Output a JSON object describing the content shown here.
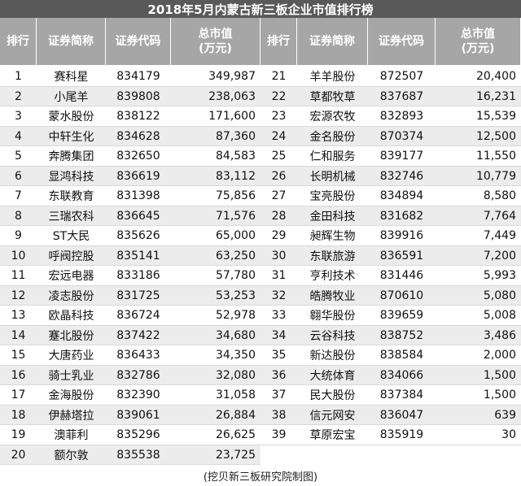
{
  "title": "2018年5月内蒙古新三板企业市值排行榜",
  "headers": [
    "排行",
    "证券简称",
    "证券代码",
    "总市值"
  ],
  "header_unit": "(万元)",
  "table": {
    "left_rows": [
      [
        "1",
        "赛科星",
        "834179",
        "349,987"
      ],
      [
        "2",
        "小尾羊",
        "839808",
        "238,063"
      ],
      [
        "3",
        "蒙水股份",
        "838122",
        "171,600"
      ],
      [
        "4",
        "中轩生化",
        "834628",
        "87,360"
      ],
      [
        "5",
        "奔腾集团",
        "832650",
        "84,583"
      ],
      [
        "6",
        "显鸿科技",
        "836619",
        "83,112"
      ],
      [
        "7",
        "东联教育",
        "831398",
        "75,856"
      ],
      [
        "8",
        "三瑞农科",
        "836645",
        "71,576"
      ],
      [
        "9",
        "ST大民",
        "835626",
        "65,000"
      ],
      [
        "10",
        "呼阀控股",
        "835141",
        "63,250"
      ],
      [
        "11",
        "宏远电器",
        "833186",
        "57,780"
      ],
      [
        "12",
        "凌志股份",
        "831725",
        "53,253"
      ],
      [
        "13",
        "欧晶科技",
        "836724",
        "52,978"
      ],
      [
        "14",
        "蹇北股份",
        "837422",
        "34,680"
      ],
      [
        "15",
        "大唐药业",
        "836433",
        "34,350"
      ],
      [
        "16",
        "骑士乳业",
        "832786",
        "32,080"
      ],
      [
        "17",
        "金海股份",
        "832390",
        "31,058"
      ],
      [
        "18",
        "伊赫塔拉",
        "839061",
        "26,884"
      ],
      [
        "19",
        "澳菲利",
        "835296",
        "26,625"
      ],
      [
        "20",
        "额尔敦",
        "835538",
        "23,725"
      ]
    ],
    "right_rows": [
      [
        "21",
        "羊羊股份",
        "872507",
        "20,400"
      ],
      [
        "22",
        "草都牧草",
        "837687",
        "16,231"
      ],
      [
        "23",
        "宏源农牧",
        "832893",
        "15,539"
      ],
      [
        "24",
        "金名股份",
        "870374",
        "12,500"
      ],
      [
        "25",
        "仁和服务",
        "839177",
        "11,550"
      ],
      [
        "26",
        "长明机械",
        "832746",
        "10,779"
      ],
      [
        "27",
        "宝亮股份",
        "834894",
        "8,580"
      ],
      [
        "28",
        "金田科技",
        "831682",
        "7,764"
      ],
      [
        "29",
        "昶辉生物",
        "839916",
        "7,449"
      ],
      [
        "30",
        "东联旅游",
        "836591",
        "7,200"
      ],
      [
        "31",
        "亨利技术",
        "831446",
        "5,993"
      ],
      [
        "32",
        "皓腾牧业",
        "870610",
        "5,080"
      ],
      [
        "33",
        "翱华股份",
        "839659",
        "5,008"
      ],
      [
        "34",
        "云谷科技",
        "838752",
        "3,486"
      ],
      [
        "35",
        "新达股份",
        "838584",
        "2,000"
      ],
      [
        "36",
        "大统体育",
        "834066",
        "1,500"
      ],
      [
        "37",
        "民大股份",
        "837384",
        "1,500"
      ],
      [
        "38",
        "信元网安",
        "836047",
        "639"
      ],
      [
        "39",
        "草原宏宝",
        "835919",
        "30"
      ]
    ]
  },
  "footer": "(挖贝新三板研究院制图)"
}
